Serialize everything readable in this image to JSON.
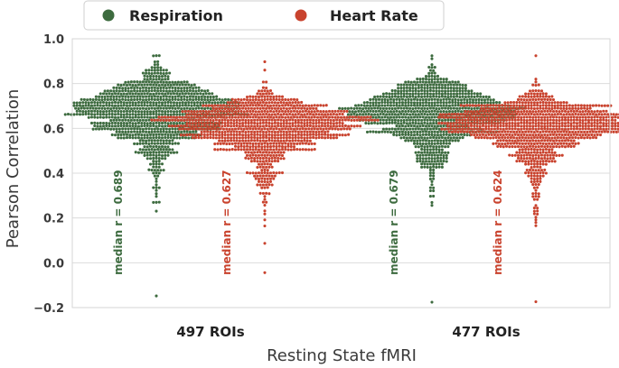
{
  "chart_data": {
    "type": "scatter",
    "subtype": "swarm",
    "title": "",
    "xlabel": "Resting State fMRI",
    "ylabel": "Pearson Correlation",
    "ylim": [
      -0.2,
      1.0
    ],
    "yticks": [
      -0.2,
      0.0,
      0.2,
      0.4,
      0.6,
      0.8,
      1.0
    ],
    "ytick_labels": [
      "−0.2",
      "0.0",
      "0.2",
      "0.4",
      "0.6",
      "0.8",
      "1.0"
    ],
    "grid": true,
    "legend_position": "top-center",
    "categories": [
      "497 ROIs",
      "477 ROIs"
    ],
    "series": [
      {
        "name": "Respiration",
        "color": "#3d6b3f",
        "medians": [
          0.689,
          0.679
        ],
        "median_labels": [
          "median r = 0.689",
          "median r = 0.679"
        ],
        "n_points": [
          497,
          477
        ],
        "max": [
          0.92,
          0.93
        ],
        "min": [
          -0.15,
          -0.18
        ]
      },
      {
        "name": "Heart Rate",
        "color": "#c9432e",
        "medians": [
          0.627,
          0.624
        ],
        "median_labels": [
          "median r = 0.627",
          "median r = 0.624"
        ],
        "n_points": [
          497,
          477
        ],
        "max": [
          0.9,
          0.92
        ],
        "min": [
          -0.05,
          -0.17
        ]
      }
    ]
  },
  "legend": {
    "items": [
      {
        "label": "Respiration",
        "color": "#3d6b3f"
      },
      {
        "label": "Heart Rate",
        "color": "#c9432e"
      }
    ]
  }
}
